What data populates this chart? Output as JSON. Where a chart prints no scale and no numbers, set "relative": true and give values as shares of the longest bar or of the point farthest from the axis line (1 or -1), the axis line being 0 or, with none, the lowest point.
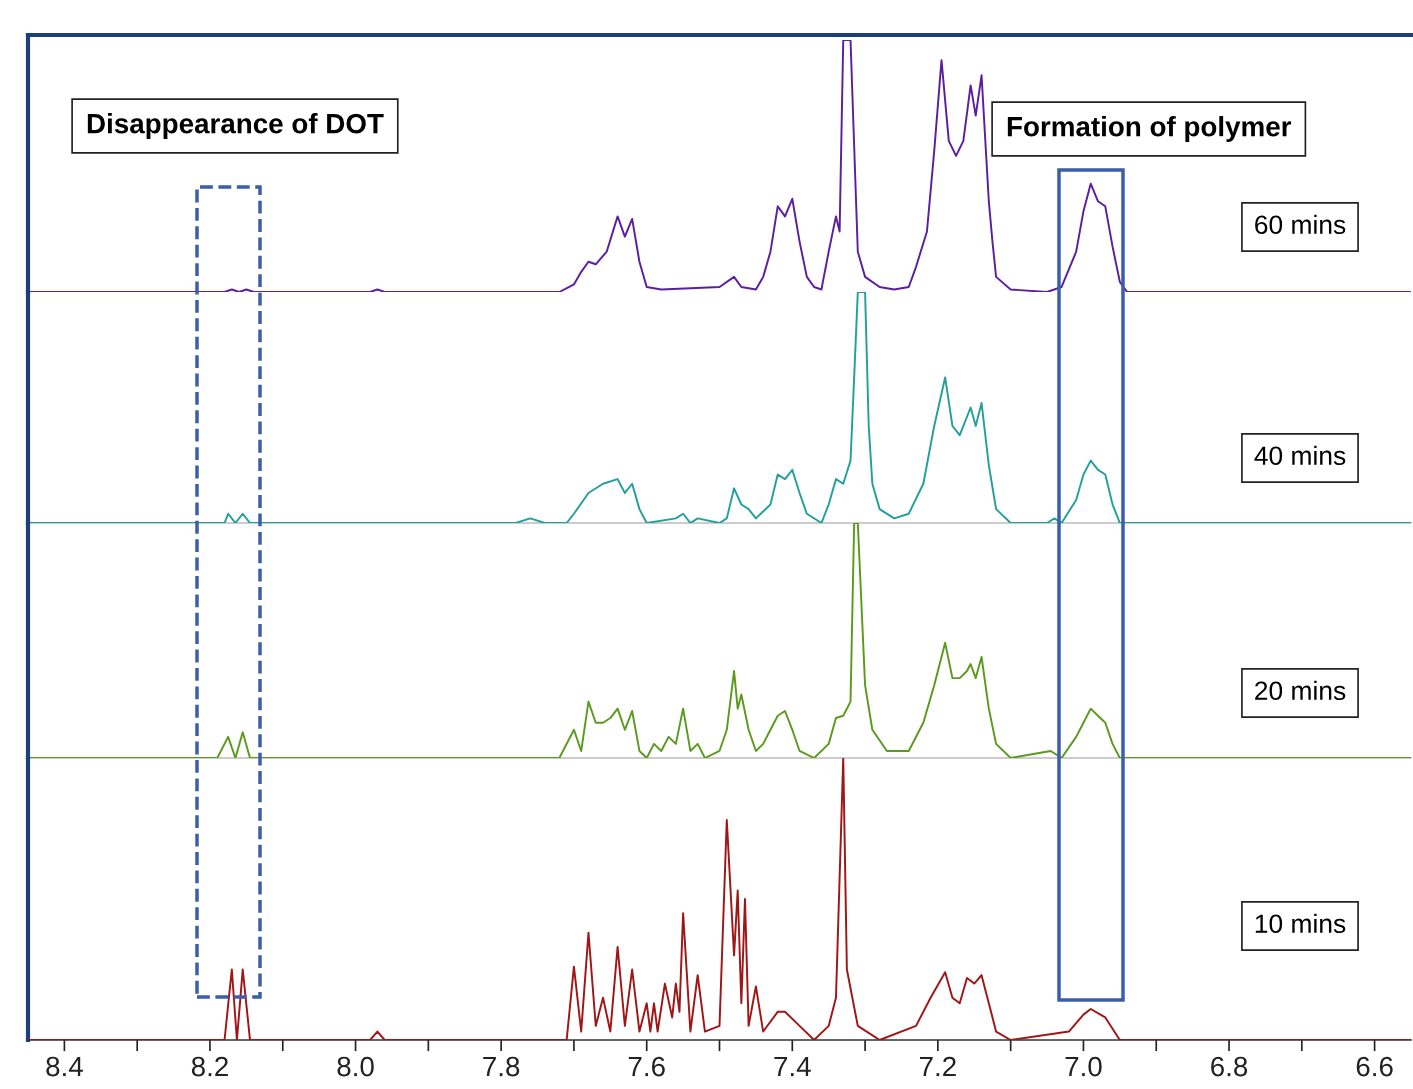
{
  "chart_data": [
    {
      "type": "line",
      "relative": true,
      "xlim": [
        8.45,
        6.55
      ],
      "tick_labels": false,
      "grid": false,
      "legend": false,
      "series": [
        {
          "name": "60 mins",
          "color": "#5b1f9e",
          "x": [
            8.45,
            8.18,
            8.17,
            8.16,
            8.15,
            8.14,
            7.98,
            7.97,
            7.96,
            7.72,
            7.7,
            7.69,
            7.68,
            7.67,
            7.655,
            7.64,
            7.63,
            7.62,
            7.61,
            7.6,
            7.58,
            7.5,
            7.48,
            7.47,
            7.45,
            7.44,
            7.43,
            7.42,
            7.41,
            7.4,
            7.39,
            7.38,
            7.37,
            7.36,
            7.35,
            7.34,
            7.335,
            7.33,
            7.32,
            7.31,
            7.3,
            7.28,
            7.26,
            7.24,
            7.23,
            7.215,
            7.205,
            7.195,
            7.185,
            7.175,
            7.165,
            7.155,
            7.148,
            7.14,
            7.13,
            7.125,
            7.12,
            7.1,
            7.05,
            7.03,
            7.01,
            7.0,
            6.99,
            6.98,
            6.97,
            6.96,
            6.95,
            6.94,
            6.55
          ],
          "values": [
            0,
            0,
            0.01,
            0,
            0.01,
            0,
            0,
            0.01,
            0,
            0,
            0.03,
            0.08,
            0.12,
            0.11,
            0.16,
            0.3,
            0.22,
            0.29,
            0.12,
            0.02,
            0.01,
            0.02,
            0.06,
            0.02,
            0.01,
            0.06,
            0.16,
            0.34,
            0.3,
            0.37,
            0.2,
            0.06,
            0.02,
            0.01,
            0.16,
            0.3,
            0.24,
            1,
            1,
            0.16,
            0.06,
            0.02,
            0.01,
            0.02,
            0.1,
            0.24,
            0.56,
            0.92,
            0.6,
            0.54,
            0.6,
            0.82,
            0.7,
            0.86,
            0.36,
            0.2,
            0.06,
            0.01,
            0,
            0.02,
            0.16,
            0.32,
            0.43,
            0.36,
            0.34,
            0.18,
            0.04,
            0,
            0
          ]
        }
      ]
    },
    {
      "type": "line",
      "relative": true,
      "xlim": [
        8.45,
        6.55
      ],
      "tick_labels": false,
      "grid": false,
      "legend": false,
      "series": [
        {
          "name": "40 mins",
          "color": "#24a09a",
          "x": [
            8.45,
            8.18,
            8.175,
            8.165,
            8.155,
            8.145,
            7.78,
            7.76,
            7.74,
            7.71,
            7.7,
            7.68,
            7.66,
            7.64,
            7.63,
            7.62,
            7.61,
            7.6,
            7.56,
            7.55,
            7.54,
            7.53,
            7.5,
            7.49,
            7.48,
            7.47,
            7.46,
            7.45,
            7.43,
            7.42,
            7.41,
            7.4,
            7.39,
            7.38,
            7.36,
            7.35,
            7.34,
            7.33,
            7.32,
            7.315,
            7.31,
            7.3,
            7.295,
            7.29,
            7.28,
            7.26,
            7.24,
            7.22,
            7.205,
            7.19,
            7.18,
            7.17,
            7.16,
            7.155,
            7.148,
            7.14,
            7.13,
            7.12,
            7.1,
            7.05,
            7.04,
            7.03,
            7.01,
            7.0,
            6.99,
            6.98,
            6.97,
            6.96,
            6.95,
            6.55
          ],
          "values": [
            0,
            0,
            0.04,
            0,
            0.04,
            0,
            0,
            0.02,
            0,
            0,
            0.04,
            0.13,
            0.17,
            0.19,
            0.13,
            0.17,
            0.06,
            0,
            0.02,
            0.04,
            0,
            0.02,
            0,
            0.02,
            0.15,
            0.08,
            0.06,
            0.02,
            0.08,
            0.21,
            0.19,
            0.23,
            0.13,
            0.04,
            0,
            0.08,
            0.19,
            0.17,
            0.27,
            0.63,
            1,
            1,
            0.42,
            0.17,
            0.06,
            0.02,
            0.04,
            0.17,
            0.42,
            0.63,
            0.42,
            0.38,
            0.46,
            0.5,
            0.42,
            0.52,
            0.25,
            0.06,
            0,
            0,
            0.02,
            0,
            0.1,
            0.21,
            0.27,
            0.23,
            0.21,
            0.08,
            0,
            0
          ]
        }
      ]
    },
    {
      "type": "line",
      "relative": true,
      "xlim": [
        8.45,
        6.55
      ],
      "tick_labels": false,
      "grid": false,
      "legend": false,
      "series": [
        {
          "name": "20 mins",
          "color": "#5b9a1e",
          "x": [
            8.45,
            8.19,
            8.175,
            8.165,
            8.155,
            8.145,
            7.72,
            7.7,
            7.69,
            7.68,
            7.67,
            7.66,
            7.65,
            7.64,
            7.63,
            7.62,
            7.61,
            7.6,
            7.59,
            7.58,
            7.57,
            7.56,
            7.55,
            7.54,
            7.53,
            7.52,
            7.5,
            7.49,
            7.48,
            7.475,
            7.47,
            7.46,
            7.45,
            7.44,
            7.43,
            7.42,
            7.41,
            7.4,
            7.39,
            7.37,
            7.35,
            7.34,
            7.33,
            7.32,
            7.315,
            7.31,
            7.3,
            7.29,
            7.27,
            7.24,
            7.22,
            7.205,
            7.19,
            7.18,
            7.17,
            7.16,
            7.155,
            7.148,
            7.14,
            7.13,
            7.12,
            7.1,
            7.045,
            7.03,
            7.01,
            7.0,
            6.99,
            6.98,
            6.97,
            6.96,
            6.95,
            6.55
          ],
          "values": [
            0,
            0,
            0.09,
            0,
            0.11,
            0,
            0,
            0.12,
            0.03,
            0.24,
            0.15,
            0.15,
            0.17,
            0.21,
            0.12,
            0.2,
            0.03,
            0,
            0.06,
            0.03,
            0.09,
            0.06,
            0.21,
            0.03,
            0.06,
            0,
            0.03,
            0.12,
            0.37,
            0.21,
            0.27,
            0.12,
            0.03,
            0.06,
            0.12,
            0.18,
            0.2,
            0.12,
            0.03,
            0,
            0.06,
            0.17,
            0.18,
            0.24,
            1,
            1,
            0.31,
            0.12,
            0.03,
            0.03,
            0.15,
            0.31,
            0.49,
            0.34,
            0.34,
            0.37,
            0.4,
            0.34,
            0.43,
            0.21,
            0.06,
            0,
            0.03,
            0,
            0.09,
            0.15,
            0.21,
            0.18,
            0.15,
            0.06,
            0,
            0
          ]
        }
      ]
    },
    {
      "type": "line",
      "relative": true,
      "xlim": [
        8.45,
        6.55
      ],
      "tick_labels": "x",
      "grid": false,
      "legend": false,
      "xticks": [
        8.4,
        {
          "value": 8.3,
          "label": null
        },
        {
          "value": 8.2,
          "label": "8.2"
        },
        {
          "value": 8.1,
          "label": null
        },
        {
          "value": 8.0,
          "label": "8.0"
        },
        {
          "value": 7.9,
          "label": null
        },
        7.8,
        {
          "value": 7.7,
          "label": null
        },
        7.6,
        {
          "value": 7.5,
          "label": null
        },
        7.4,
        {
          "value": 7.3,
          "label": null
        },
        7.2,
        {
          "value": 7.1,
          "label": null
        },
        {
          "value": 7.0,
          "label": "7.0"
        },
        {
          "value": 6.9,
          "label": null
        },
        6.8,
        {
          "value": 6.7,
          "label": null
        },
        6.6
      ],
      "annotations": [
        "Disappearance of DOT",
        "Formation of polymer"
      ],
      "series": [
        {
          "name": "10 mins",
          "color": "#a01515",
          "x": [
            8.45,
            8.18,
            8.17,
            8.163,
            8.155,
            8.145,
            7.98,
            7.97,
            7.96,
            7.71,
            7.7,
            7.69,
            7.68,
            7.67,
            7.66,
            7.65,
            7.64,
            7.63,
            7.62,
            7.61,
            7.6,
            7.595,
            7.59,
            7.585,
            7.575,
            7.565,
            7.56,
            7.555,
            7.55,
            7.54,
            7.53,
            7.52,
            7.5,
            7.49,
            7.48,
            7.475,
            7.47,
            7.465,
            7.46,
            7.45,
            7.44,
            7.42,
            7.41,
            7.39,
            7.37,
            7.35,
            7.34,
            7.33,
            7.325,
            7.31,
            7.28,
            7.23,
            7.21,
            7.19,
            7.18,
            7.17,
            7.16,
            7.15,
            7.14,
            7.13,
            7.12,
            7.1,
            7.02,
            7.0,
            6.99,
            6.97,
            6.95,
            6.55
          ],
          "values": [
            0,
            0,
            0.25,
            0,
            0.25,
            0,
            0,
            0.03,
            0,
            0,
            0.26,
            0.03,
            0.38,
            0.05,
            0.15,
            0.03,
            0.33,
            0.05,
            0.25,
            0.03,
            0.13,
            0.03,
            0.13,
            0.03,
            0.2,
            0.08,
            0.2,
            0.1,
            0.45,
            0.03,
            0.23,
            0.03,
            0.05,
            0.78,
            0.3,
            0.53,
            0.13,
            0.5,
            0.05,
            0.19,
            0.03,
            0.1,
            0.1,
            0.05,
            0,
            0.05,
            0.15,
            1,
            0.25,
            0.05,
            0,
            0.05,
            0.15,
            0.24,
            0.15,
            0.13,
            0.22,
            0.2,
            0.23,
            0.13,
            0.03,
            0,
            0.03,
            0.09,
            0.11,
            0.08,
            0,
            0
          ]
        }
      ]
    }
  ]
}
